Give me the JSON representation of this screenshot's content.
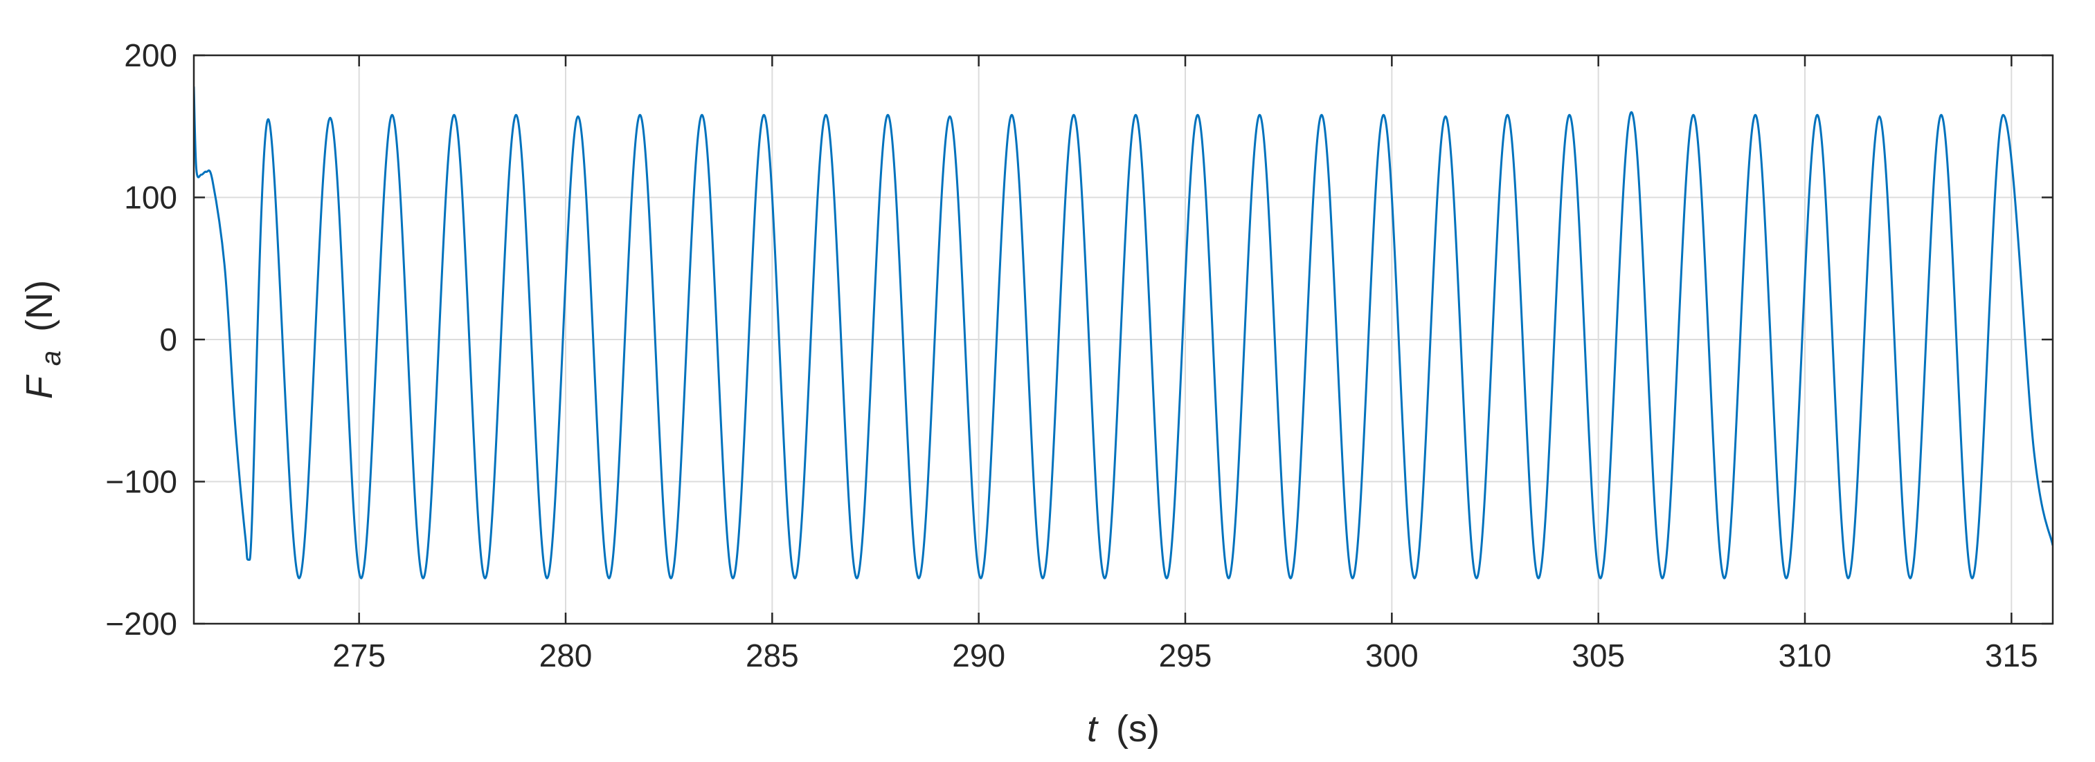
{
  "chart_data": {
    "type": "line",
    "title": "",
    "xlabel": {
      "symbol": "t",
      "unit": "(s)"
    },
    "ylabel": {
      "symbol": "F",
      "subscript": "a",
      "unit": "(N)"
    },
    "xlim": [
      271,
      316
    ],
    "ylim": [
      -200,
      200
    ],
    "xticks": [
      275,
      280,
      285,
      290,
      295,
      300,
      305,
      310,
      315
    ],
    "yticks": [
      -200,
      -100,
      0,
      100,
      200
    ],
    "xtick_labels": [
      "275",
      "280",
      "285",
      "290",
      "295",
      "300",
      "305",
      "310",
      "315"
    ],
    "ytick_labels": [
      "−200",
      "−100",
      "0",
      "100",
      "200"
    ],
    "grid": true,
    "colors": {
      "series": "#0072bd",
      "grid": "#dcdcdc",
      "axes": "#262626"
    },
    "series": [
      {
        "values": [
          [
            271.0,
            178
          ],
          [
            271.06,
            120
          ],
          [
            271.18,
            116
          ],
          [
            271.3,
            118
          ],
          [
            271.45,
            112
          ],
          [
            271.75,
            50
          ],
          [
            272.0,
            -60
          ],
          [
            272.25,
            -140
          ],
          [
            272.35,
            -155
          ],
          [
            272.8,
            155
          ],
          [
            273.55,
            -168
          ],
          [
            274.3,
            156
          ],
          [
            275.05,
            -168
          ],
          [
            275.8,
            158
          ],
          [
            276.55,
            -168
          ],
          [
            277.3,
            158
          ],
          [
            278.05,
            -168
          ],
          [
            278.8,
            158
          ],
          [
            279.55,
            -168
          ],
          [
            280.3,
            157
          ],
          [
            281.05,
            -168
          ],
          [
            281.8,
            158
          ],
          [
            282.55,
            -168
          ],
          [
            283.3,
            158
          ],
          [
            284.05,
            -168
          ],
          [
            284.8,
            158
          ],
          [
            285.55,
            -168
          ],
          [
            286.3,
            158
          ],
          [
            287.05,
            -168
          ],
          [
            287.8,
            158
          ],
          [
            288.55,
            -168
          ],
          [
            289.3,
            157
          ],
          [
            290.05,
            -168
          ],
          [
            290.8,
            158
          ],
          [
            291.55,
            -168
          ],
          [
            292.3,
            158
          ],
          [
            293.05,
            -168
          ],
          [
            293.8,
            158
          ],
          [
            294.55,
            -168
          ],
          [
            295.3,
            158
          ],
          [
            296.05,
            -168
          ],
          [
            296.8,
            158
          ],
          [
            297.55,
            -168
          ],
          [
            298.3,
            158
          ],
          [
            299.05,
            -168
          ],
          [
            299.8,
            158
          ],
          [
            300.55,
            -168
          ],
          [
            301.3,
            157
          ],
          [
            302.05,
            -168
          ],
          [
            302.8,
            158
          ],
          [
            303.55,
            -168
          ],
          [
            304.3,
            158
          ],
          [
            305.05,
            -168
          ],
          [
            305.8,
            160
          ],
          [
            306.55,
            -168
          ],
          [
            307.3,
            158
          ],
          [
            308.05,
            -168
          ],
          [
            308.8,
            158
          ],
          [
            309.55,
            -168
          ],
          [
            310.3,
            158
          ],
          [
            311.05,
            -168
          ],
          [
            311.8,
            157
          ],
          [
            312.55,
            -168
          ],
          [
            313.3,
            158
          ],
          [
            314.05,
            -168
          ],
          [
            314.8,
            158
          ],
          [
            315.55,
            -80
          ],
          [
            316.0,
            -145
          ]
        ]
      }
    ]
  }
}
